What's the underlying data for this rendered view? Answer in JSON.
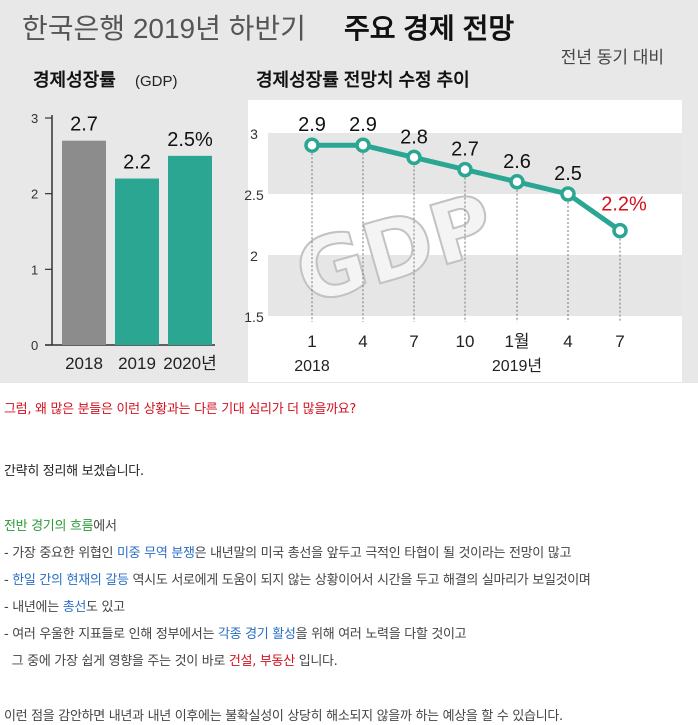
{
  "infographic": {
    "title_light": "한국은행 2019년 하반기",
    "title_bold": "주요 경제 전망",
    "basis_note": "전년 동기 대비",
    "watermark": "GDP",
    "colors": {
      "background": "#e8e8e8",
      "bar_2018": "#8c8c8c",
      "bar_forecast": "#2aa693",
      "line": "#2aa693",
      "highlight": "#d4101e"
    }
  },
  "chart_data": [
    {
      "type": "bar",
      "title": "경제성장률",
      "title_suffix": "(GDP)",
      "categories": [
        "2018",
        "2019",
        "2020년"
      ],
      "values": [
        2.7,
        2.2,
        2.5
      ],
      "value_labels": [
        "2.7",
        "2.2",
        "2.5%"
      ],
      "ylim": [
        0,
        3
      ],
      "yticks": [
        "0",
        "1",
        "2",
        "3"
      ]
    },
    {
      "type": "line",
      "title": "경제성장률 전망치 수정 추이",
      "x_labels": [
        "1",
        "4",
        "7",
        "10",
        "1월",
        "4",
        "7"
      ],
      "year_labels": [
        "2018",
        "2019년"
      ],
      "values": [
        2.9,
        2.9,
        2.8,
        2.7,
        2.6,
        2.5,
        2.2
      ],
      "value_labels": [
        "2.9",
        "2.9",
        "2.8",
        "2.7",
        "2.6",
        "2.5",
        "2.2%"
      ],
      "ylim": [
        1.5,
        3
      ],
      "yticks": [
        "1.5",
        "2",
        "2.5",
        "3"
      ]
    }
  ],
  "article": {
    "question": "그럼, 왜 많은 분들은 이런 상황과는 다른 기대 심리가 더 많을까요?",
    "summary_intro": "간략히 정리해 보겠습니다.",
    "section_title": "전반 경기의 흐름",
    "section_title_suffix": "에서",
    "b1_prefix": "- 가장 중요한 위협인 ",
    "b1_highlight": "미중 무역 분쟁",
    "b1_rest": "은 내년말의 미국 총선을 앞두고 극적인 타협이 될 것이라는 전망이 많고",
    "b2_prefix": "- ",
    "b2_highlight": "한일 간의 현재의 갈등",
    "b2_rest": " 역시도 서로에게 도움이 되지 않는 상황이어서 시간을 두고 해결의 실마리가 보일것이며",
    "b3_prefix": "- 내년에는 ",
    "b3_highlight": "총선",
    "b3_rest": "도 있고",
    "b4_prefix": "- 여러 우울한 지표들로 인해 정부에서는 ",
    "b4_highlight": "각종 경기 활성",
    "b4_rest": "을 위해 여러 노력을 다할 것이고",
    "b5_prefix": "  그 중에 가장 쉽게 영향을 주는 것이 바로 ",
    "b5_highlight": "건설, 부동산",
    "b5_rest": " 입니다.",
    "conclusion": "이런 점을 감안하면 내년과 내년 이후에는 불확실성이 상당히 해소되지 않을까 하는 예상을 할 수 있습니다."
  }
}
